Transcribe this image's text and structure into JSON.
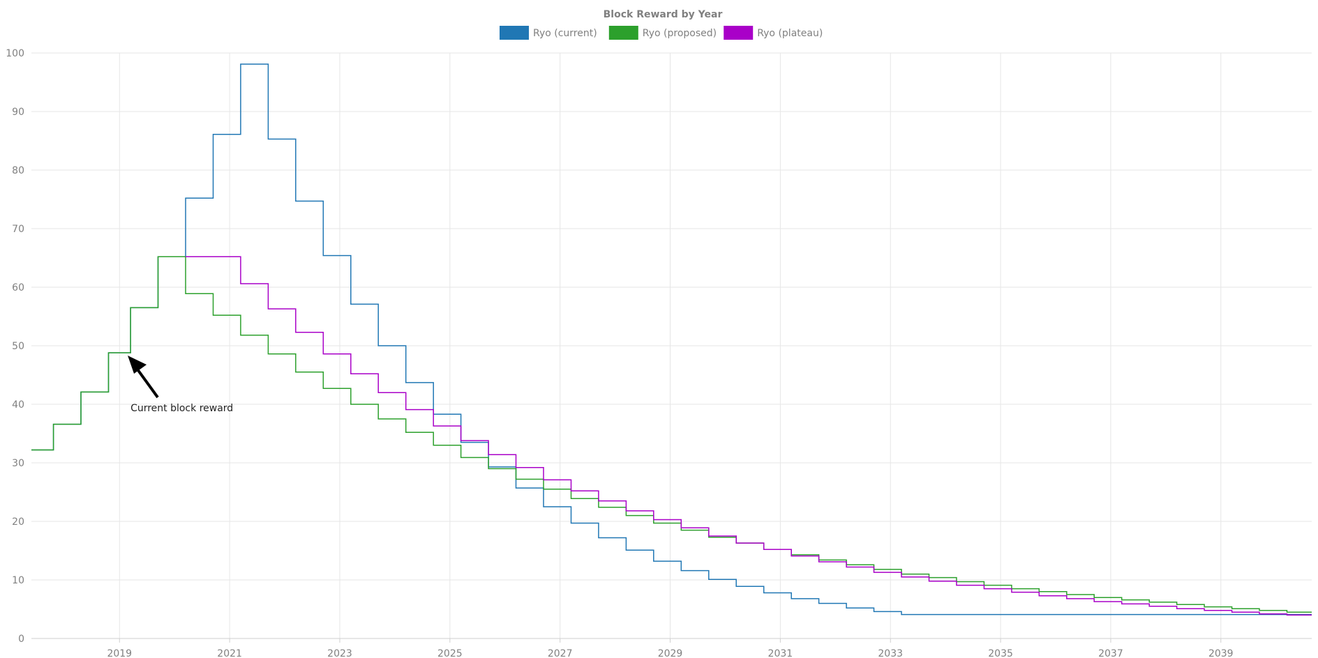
{
  "chart_data": {
    "type": "line",
    "step": true,
    "title": "Block Reward by Year",
    "xlabel": "",
    "ylabel": "",
    "xlim": [
      2017.4,
      2040.65
    ],
    "ylim": [
      0,
      100
    ],
    "x_ticks": [
      "2019",
      "2021",
      "2023",
      "2025",
      "2027",
      "2029",
      "2031",
      "2033",
      "2035",
      "2037",
      "2039"
    ],
    "y_ticks": [
      "0",
      "10",
      "20",
      "30",
      "40",
      "50",
      "60",
      "70",
      "80",
      "90",
      "100"
    ],
    "grid": true,
    "legend_position": "top-center",
    "series": [
      {
        "name": "Ryo (current)",
        "color": "#2077b4",
        "x": [
          2017.4,
          2017.8,
          2018.3,
          2018.8,
          2019.2,
          2019.7,
          2020.2,
          2020.7,
          2021.2,
          2021.7,
          2022.2,
          2022.7,
          2023.2,
          2023.7,
          2024.2,
          2024.7,
          2025.2,
          2025.7,
          2026.2,
          2026.7,
          2027.2,
          2027.7,
          2028.2,
          2028.7,
          2029.2,
          2029.7,
          2030.2,
          2030.7,
          2031.2,
          2031.7,
          2032.2,
          2032.7,
          2033.2,
          2040.65
        ],
        "y": [
          32.2,
          36.6,
          42.1,
          48.8,
          56.5,
          65.2,
          75.2,
          86.1,
          98.1,
          85.3,
          74.7,
          65.4,
          57.1,
          50.0,
          43.7,
          38.3,
          33.5,
          29.3,
          25.7,
          22.5,
          19.7,
          17.2,
          15.1,
          13.2,
          11.6,
          10.1,
          8.9,
          7.8,
          6.8,
          6.0,
          5.2,
          4.6,
          4.1,
          4.1
        ]
      },
      {
        "name": "Ryo (proposed)",
        "color": "#2ca02c",
        "x": [
          2017.4,
          2017.8,
          2018.3,
          2018.8,
          2019.2,
          2019.7,
          2020.2,
          2020.7,
          2021.2,
          2021.7,
          2022.2,
          2022.7,
          2023.2,
          2023.7,
          2024.2,
          2024.7,
          2025.2,
          2025.7,
          2026.2,
          2026.7,
          2027.2,
          2027.7,
          2028.2,
          2028.7,
          2029.2,
          2029.7,
          2030.2,
          2030.7,
          2031.2,
          2031.7,
          2032.2,
          2032.7,
          2033.2,
          2033.7,
          2034.2,
          2034.7,
          2035.2,
          2035.7,
          2036.2,
          2036.7,
          2037.2,
          2037.7,
          2038.2,
          2038.7,
          2039.2,
          2039.7,
          2040.2,
          2040.65
        ],
        "y": [
          32.2,
          36.6,
          42.1,
          48.8,
          56.5,
          65.2,
          58.9,
          55.2,
          51.8,
          48.6,
          45.5,
          42.7,
          40.0,
          37.5,
          35.2,
          33.0,
          30.9,
          29.0,
          27.2,
          25.5,
          23.9,
          22.4,
          21.0,
          19.7,
          18.5,
          17.3,
          16.3,
          15.2,
          14.3,
          13.4,
          12.6,
          11.8,
          11.0,
          10.4,
          9.7,
          9.1,
          8.5,
          8.0,
          7.5,
          7.0,
          6.6,
          6.2,
          5.8,
          5.4,
          5.1,
          4.8,
          4.5,
          4.5
        ]
      },
      {
        "name": "Ryo (plateau)",
        "color": "#a900c8",
        "x": [
          2020.2,
          2021.2,
          2021.7,
          2022.2,
          2022.7,
          2023.2,
          2023.7,
          2024.2,
          2024.7,
          2025.2,
          2025.7,
          2026.2,
          2026.7,
          2027.2,
          2027.7,
          2028.2,
          2028.7,
          2029.2,
          2029.7,
          2030.2,
          2030.7,
          2031.2,
          2031.7,
          2032.2,
          2032.7,
          2033.2,
          2033.7,
          2034.2,
          2034.7,
          2035.2,
          2035.7,
          2036.2,
          2036.7,
          2037.2,
          2037.7,
          2038.2,
          2038.7,
          2039.2,
          2039.7,
          2040.2,
          2040.65
        ],
        "y": [
          65.2,
          60.6,
          56.3,
          52.3,
          48.6,
          45.2,
          42.0,
          39.1,
          36.3,
          33.8,
          31.4,
          29.2,
          27.1,
          25.2,
          23.5,
          21.8,
          20.3,
          18.9,
          17.5,
          16.3,
          15.2,
          14.1,
          13.1,
          12.2,
          11.3,
          10.5,
          9.8,
          9.1,
          8.5,
          7.9,
          7.3,
          6.8,
          6.3,
          5.9,
          5.5,
          5.1,
          4.8,
          4.5,
          4.2,
          4.0,
          4.0
        ]
      }
    ],
    "annotations": [
      {
        "text": "Current block reward",
        "x": 2019.2,
        "y": 48.8,
        "arrow": true
      }
    ]
  }
}
